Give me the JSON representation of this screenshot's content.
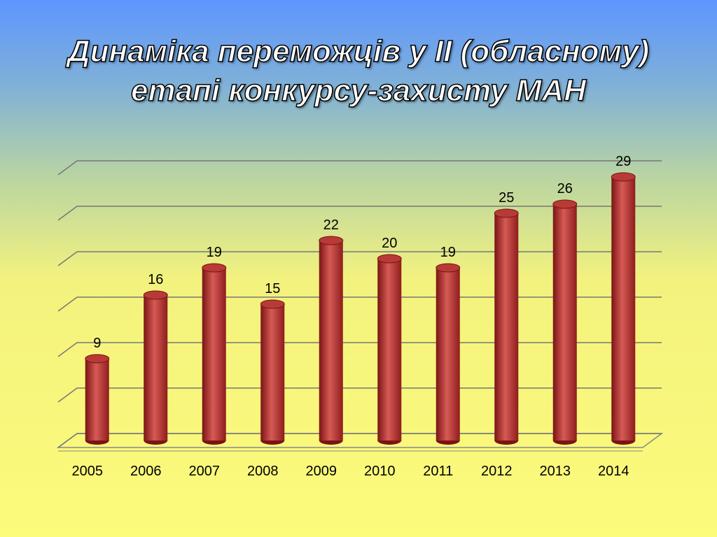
{
  "chart_data": {
    "type": "bar",
    "title": "Динаміка переможців у ІІ (обласному) етапі конкурсу-захисту МАН",
    "categories": [
      "2005",
      "2006",
      "2007",
      "2008",
      "2009",
      "2010",
      "2011",
      "2012",
      "2013",
      "2014"
    ],
    "values": [
      9,
      16,
      19,
      15,
      22,
      20,
      19,
      25,
      26,
      29
    ],
    "color": "#c0392b",
    "ylim": [
      0,
      30
    ],
    "yticks": [
      0,
      5,
      10,
      15,
      20,
      25,
      30
    ],
    "grid": true
  }
}
